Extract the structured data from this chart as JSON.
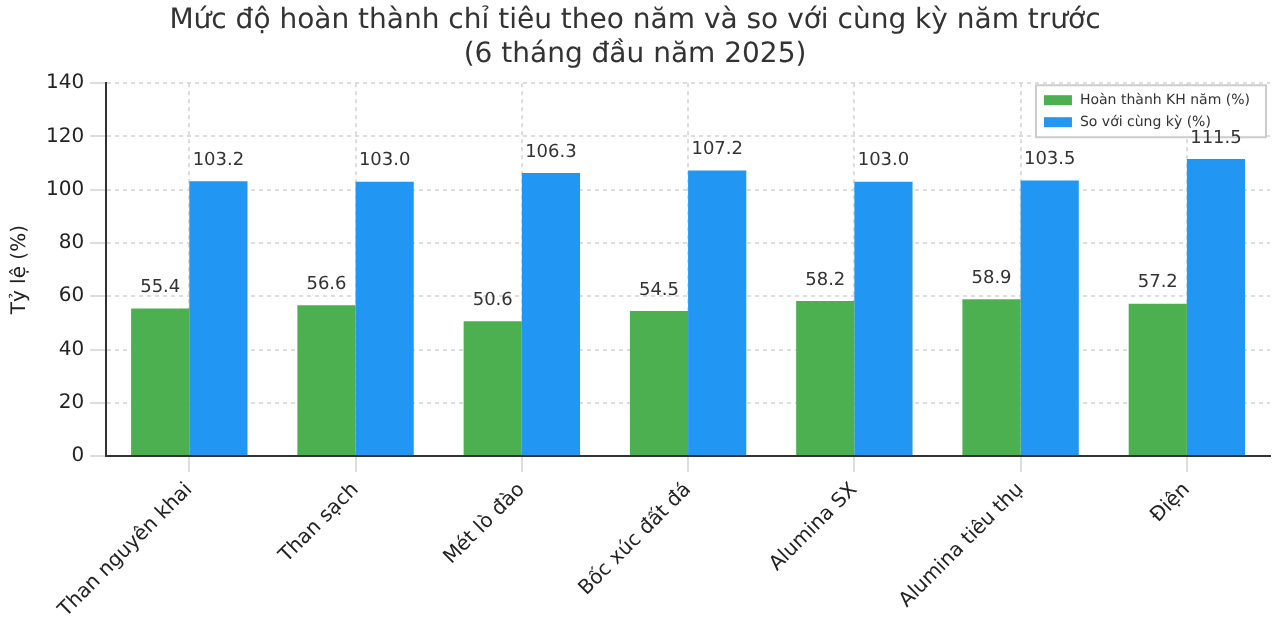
{
  "chart_data": {
    "type": "bar",
    "title": "Mức độ hoàn thành chỉ tiêu theo năm và so với cùng kỳ năm trước\n(6 tháng đầu năm 2025)",
    "ylabel": "Tỷ lệ (%)",
    "categories": [
      "Than nguyên khai",
      "Than sạch",
      "Mét lò đào",
      "Bốc xúc đất đá",
      "Alumina SX",
      "Alumina tiêu thụ",
      "Điện"
    ],
    "series": [
      {
        "name": "Hoàn thành KH năm (%)",
        "color": "#4caf50",
        "values": [
          55.4,
          56.6,
          50.6,
          54.5,
          58.2,
          58.9,
          57.2
        ],
        "value_labels": [
          "55.4",
          "56.6",
          "50.6",
          "54.5",
          "58.2",
          "58.9",
          "57.2"
        ]
      },
      {
        "name": "So với cùng kỳ (%)",
        "color": "#2196f3",
        "values": [
          103.2,
          103.0,
          106.3,
          107.2,
          103.0,
          103.5,
          111.5
        ],
        "value_labels": [
          "103.2",
          "103.0",
          "106.3",
          "107.2",
          "103.0",
          "103.5",
          "111.5"
        ]
      }
    ],
    "ylim": [
      0,
      140
    ],
    "yticks": [
      0,
      20,
      40,
      60,
      80,
      100,
      120,
      140
    ],
    "grid": true,
    "legend": "top right"
  }
}
